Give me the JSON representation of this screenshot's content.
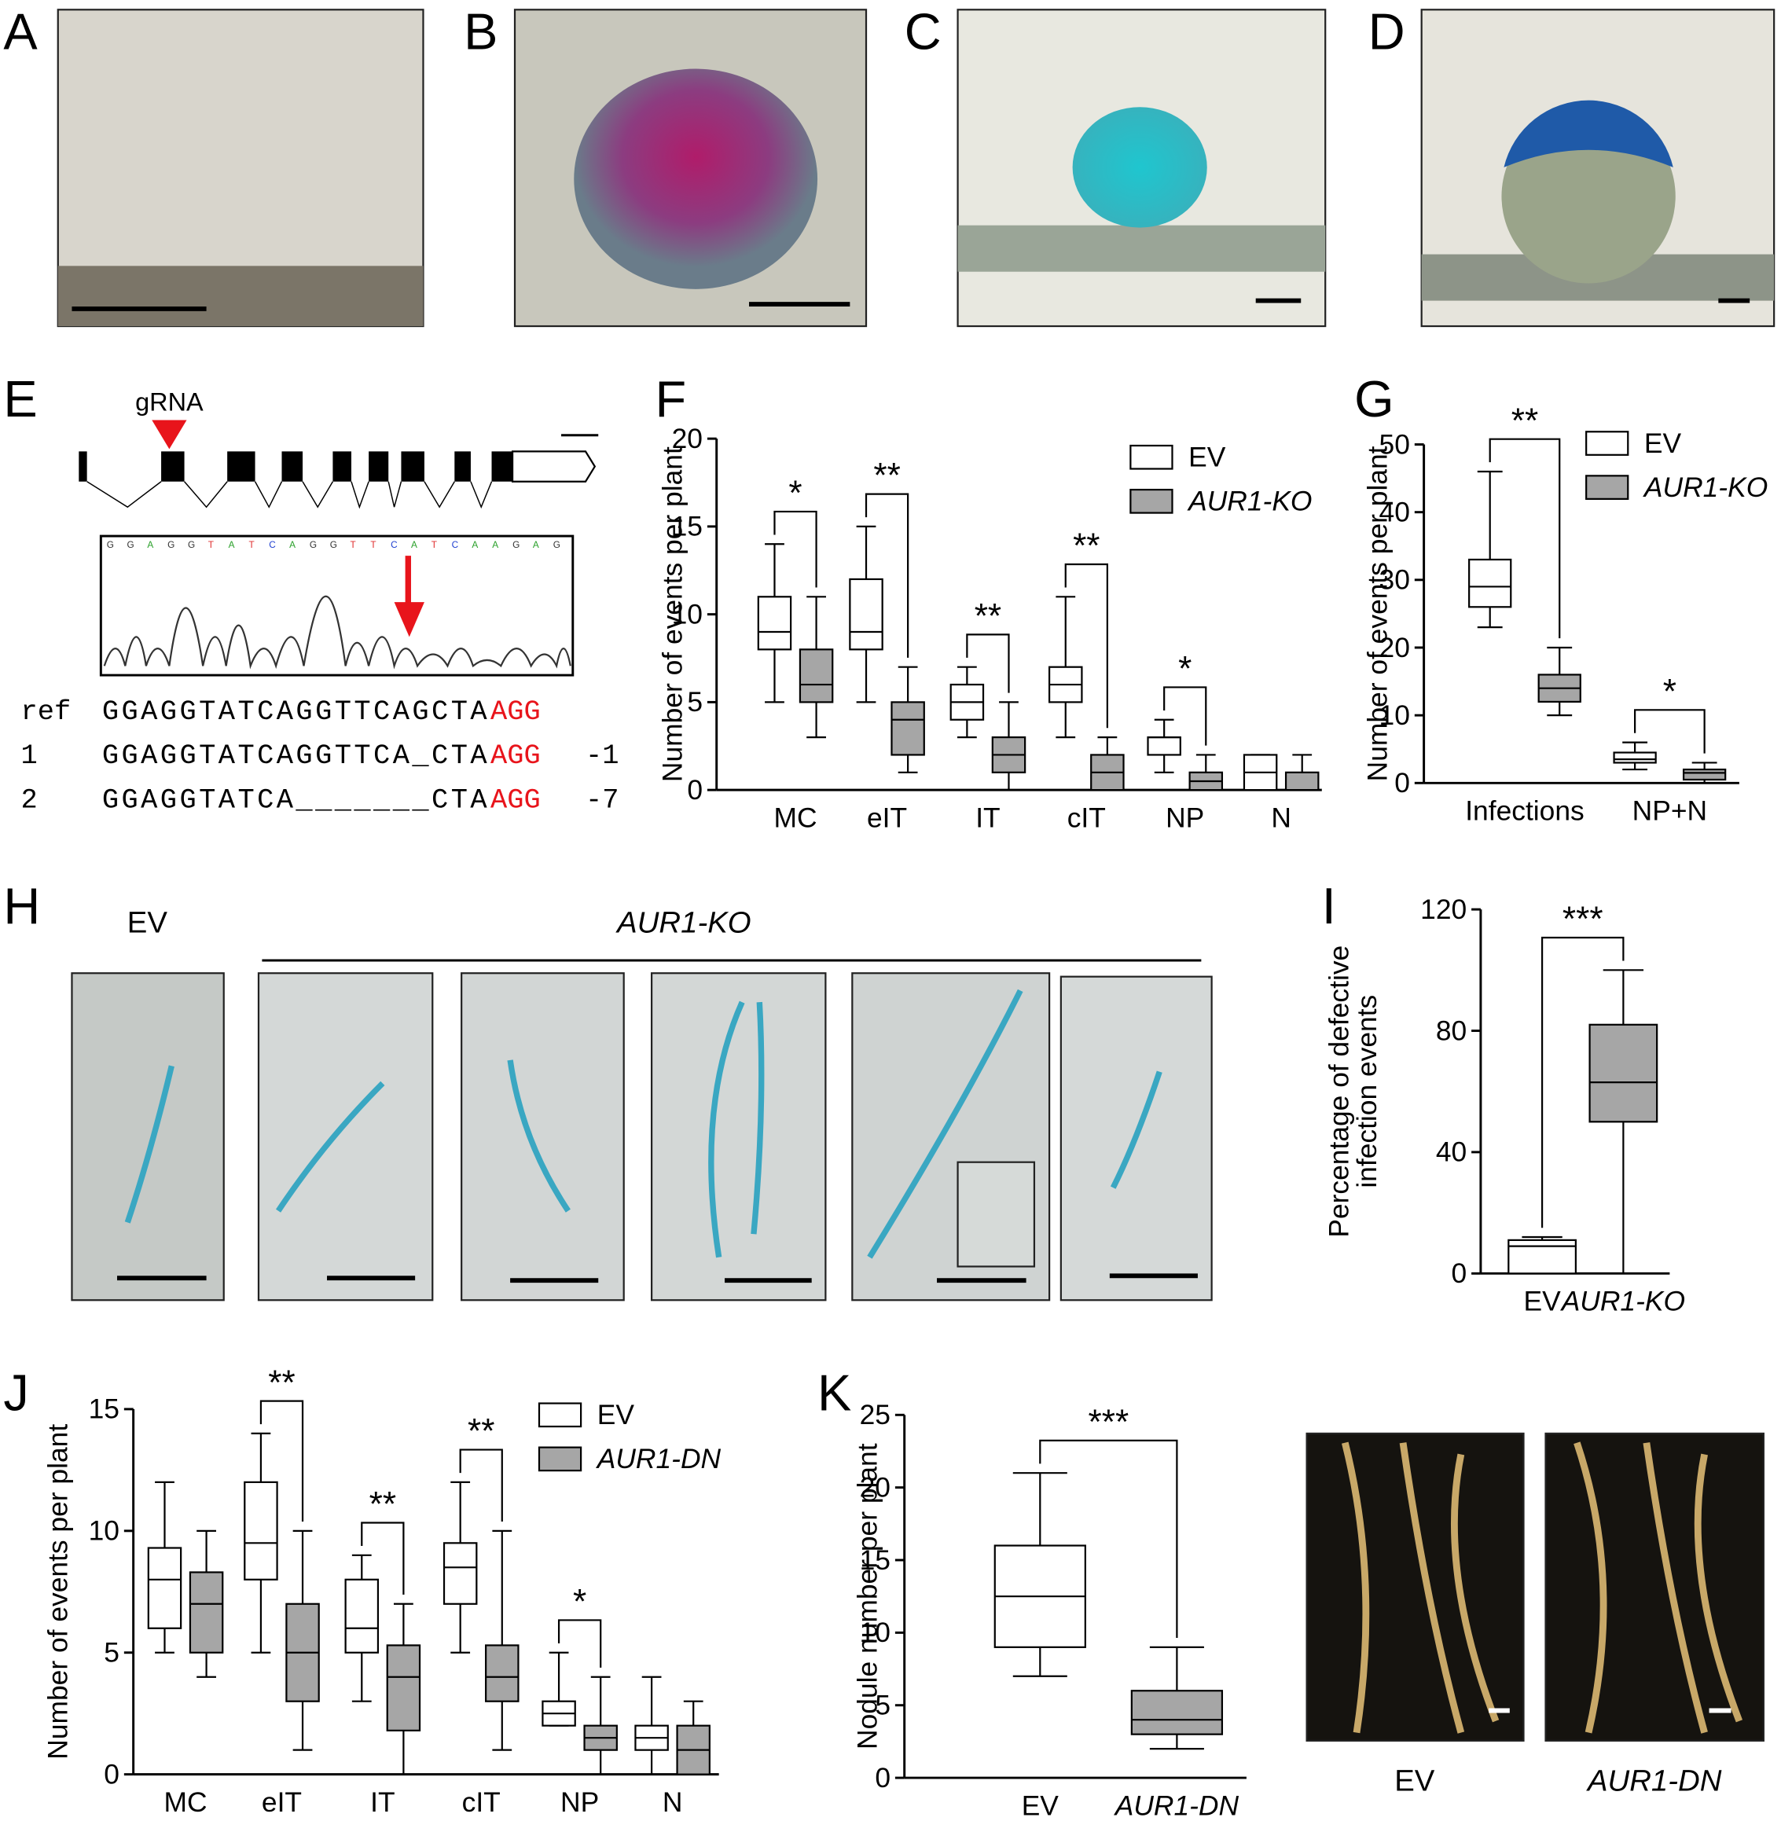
{
  "panels": {
    "letters": [
      "A",
      "B",
      "C",
      "D",
      "E",
      "F",
      "G",
      "H",
      "I",
      "J",
      "K"
    ]
  },
  "gene_diagram": {
    "grna_label": "gRNA",
    "chrom_bases": [
      "G",
      "G",
      "A",
      "G",
      "G",
      "T",
      "A",
      "T",
      "C",
      "A",
      "G",
      "G",
      "T",
      "T",
      "C",
      "A",
      "T",
      "C",
      "A",
      "A",
      "G",
      "A",
      "G"
    ],
    "rows": [
      {
        "id": "ref",
        "seq": "GGAGGTATCAGGTTCAGCTA",
        "pam": "AGG",
        "change": null
      },
      {
        "id": "1",
        "seq": "GGAGGTATCAGGTTCA_CTA",
        "pam": "AGG",
        "change": "-1"
      },
      {
        "id": "2",
        "seq": "GGAGGTATCA_______CTA",
        "pam": "AGG",
        "change": "-7"
      }
    ]
  },
  "panel_h": {
    "ev_label": "EV",
    "ko_label": "AUR1-KO"
  },
  "panel_k_photos": {
    "labels": [
      "EV",
      "AUR1-DN"
    ]
  },
  "chart_data": [
    {
      "type": "box",
      "ylabel": "Number of events per plant",
      "categories": [
        "MC",
        "eIT",
        "IT",
        "cIT",
        "NP",
        "N"
      ],
      "ylim": [
        0,
        20
      ],
      "yticks": [
        0,
        5,
        10,
        15,
        20
      ],
      "series": [
        {
          "name": "EV",
          "color": "#ffffff",
          "stats": [
            {
              "min": 5,
              "q1": 8,
              "median": 9,
              "q3": 11,
              "max": 14
            },
            {
              "min": 5,
              "q1": 8,
              "median": 9,
              "q3": 12,
              "max": 15
            },
            {
              "min": 3,
              "q1": 4,
              "median": 5,
              "q3": 6,
              "max": 7
            },
            {
              "min": 3,
              "q1": 5,
              "median": 6,
              "q3": 7,
              "max": 11
            },
            {
              "min": 1,
              "q1": 2,
              "median": 3,
              "q3": 3,
              "max": 4
            },
            {
              "min": 0,
              "q1": 0,
              "median": 1,
              "q3": 2,
              "max": 2
            }
          ]
        },
        {
          "name": "AUR1-KO",
          "color": "#a6a6a6",
          "stats": [
            {
              "min": 3,
              "q1": 5,
              "median": 6,
              "q3": 8,
              "max": 11
            },
            {
              "min": 1,
              "q1": 2,
              "median": 4,
              "q3": 5,
              "max": 7
            },
            {
              "min": 0,
              "q1": 1,
              "median": 2,
              "q3": 3,
              "max": 5
            },
            {
              "min": 0,
              "q1": 0,
              "median": 1,
              "q3": 2,
              "max": 3
            },
            {
              "min": 0,
              "q1": 0,
              "median": 0.5,
              "q3": 1,
              "max": 2
            },
            {
              "min": 0,
              "q1": 0,
              "median": 0,
              "q3": 1,
              "max": 2
            }
          ]
        }
      ],
      "significance": [
        {
          "category": 0,
          "label": "*"
        },
        {
          "category": 1,
          "label": "**"
        },
        {
          "category": 2,
          "label": "**"
        },
        {
          "category": 3,
          "label": "**"
        },
        {
          "category": 4,
          "label": "*"
        }
      ]
    },
    {
      "type": "box",
      "ylabel": "Number of events per plant",
      "categories": [
        "Infections",
        "NP+N"
      ],
      "ylim": [
        0,
        50
      ],
      "yticks": [
        0,
        10,
        20,
        30,
        40,
        50
      ],
      "series": [
        {
          "name": "EV",
          "color": "#ffffff",
          "stats": [
            {
              "min": 23,
              "q1": 26,
              "median": 29,
              "q3": 33,
              "max": 46
            },
            {
              "min": 2,
              "q1": 3,
              "median": 3.5,
              "q3": 4.5,
              "max": 6
            }
          ]
        },
        {
          "name": "AUR1-KO",
          "color": "#a6a6a6",
          "stats": [
            {
              "min": 10,
              "q1": 12,
              "median": 14,
              "q3": 16,
              "max": 20
            },
            {
              "min": 0,
              "q1": 0.5,
              "median": 1.5,
              "q3": 2,
              "max": 3
            }
          ]
        }
      ],
      "significance": [
        {
          "category": 0,
          "label": "**"
        },
        {
          "category": 1,
          "label": "*"
        }
      ]
    },
    {
      "type": "box",
      "ylabel": [
        "Percentage of defective",
        "infection events"
      ],
      "categories": [
        "EV",
        "AUR1-KO"
      ],
      "ylim": [
        0,
        120
      ],
      "yticks": [
        0,
        40,
        80,
        120
      ],
      "colors": [
        "#ffffff",
        "#a6a6a6"
      ],
      "stats": [
        {
          "min": 0,
          "q1": 0,
          "median": 9,
          "q3": 11,
          "max": 12
        },
        {
          "min": 0,
          "q1": 50,
          "median": 63,
          "q3": 82,
          "max": 100
        }
      ],
      "significance": [
        {
          "label": "***"
        }
      ]
    },
    {
      "type": "box",
      "ylabel": "Number of events per plant",
      "categories": [
        "MC",
        "eIT",
        "IT",
        "cIT",
        "NP",
        "N"
      ],
      "ylim": [
        0,
        15
      ],
      "yticks": [
        0,
        5,
        10,
        15
      ],
      "series": [
        {
          "name": "EV",
          "color": "#ffffff",
          "stats": [
            {
              "min": 5,
              "q1": 6,
              "median": 8,
              "q3": 9.3,
              "max": 12
            },
            {
              "min": 5,
              "q1": 8,
              "median": 9.5,
              "q3": 12,
              "max": 14
            },
            {
              "min": 3,
              "q1": 5,
              "median": 6,
              "q3": 8,
              "max": 9
            },
            {
              "min": 5,
              "q1": 7,
              "median": 8.5,
              "q3": 9.5,
              "max": 12
            },
            {
              "min": 2,
              "q1": 2,
              "median": 2.5,
              "q3": 3,
              "max": 5
            },
            {
              "min": 0,
              "q1": 1,
              "median": 1.5,
              "q3": 2,
              "max": 4
            }
          ]
        },
        {
          "name": "AUR1-DN",
          "color": "#a6a6a6",
          "stats": [
            {
              "min": 4,
              "q1": 5,
              "median": 7,
              "q3": 8.3,
              "max": 10
            },
            {
              "min": 1,
              "q1": 3,
              "median": 5,
              "q3": 7,
              "max": 10
            },
            {
              "min": 0,
              "q1": 1.8,
              "median": 4,
              "q3": 5.3,
              "max": 7
            },
            {
              "min": 1,
              "q1": 3,
              "median": 4,
              "q3": 5.3,
              "max": 10
            },
            {
              "min": 0,
              "q1": 1,
              "median": 1.5,
              "q3": 2,
              "max": 4
            },
            {
              "min": 0,
              "q1": 0,
              "median": 1,
              "q3": 2,
              "max": 3
            }
          ]
        }
      ],
      "significance": [
        {
          "category": 1,
          "label": "**"
        },
        {
          "category": 2,
          "label": "**"
        },
        {
          "category": 3,
          "label": "**"
        },
        {
          "category": 4,
          "label": "*"
        }
      ]
    },
    {
      "type": "box",
      "ylabel": "Nodule number per plant",
      "categories": [
        "EV",
        "AUR1-DN"
      ],
      "ylim": [
        0,
        25
      ],
      "yticks": [
        0,
        5,
        10,
        15,
        20,
        25
      ],
      "colors": [
        "#ffffff",
        "#a6a6a6"
      ],
      "stats": [
        {
          "min": 7,
          "q1": 9,
          "median": 12.5,
          "q3": 16,
          "max": 21
        },
        {
          "min": 2,
          "q1": 3,
          "median": 4,
          "q3": 6,
          "max": 9
        }
      ],
      "significance": [
        {
          "label": "***"
        }
      ]
    }
  ]
}
